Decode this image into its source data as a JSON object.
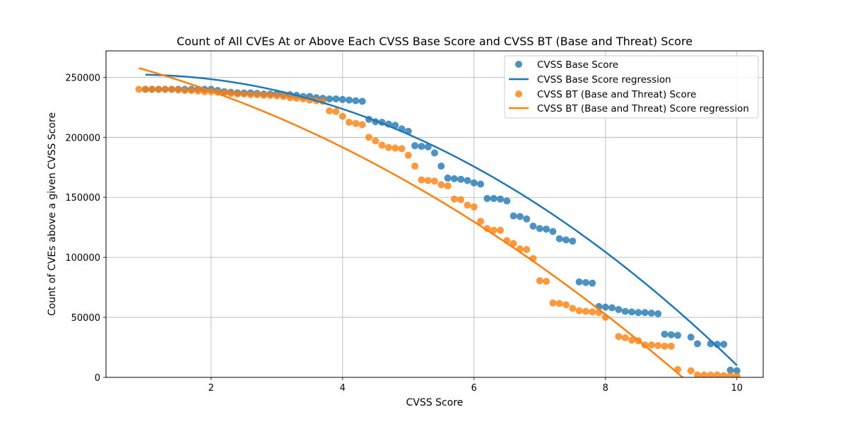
{
  "chart_data": {
    "type": "scatter",
    "title": "Count of All CVEs At or Above Each CVSS Base Score and CVSS BT (Base and Threat) Score",
    "xlabel": "CVSS Score",
    "ylabel": "Count of CVEs above a given CVSS Score",
    "xlim": [
      0.4,
      10.4
    ],
    "ylim": [
      0,
      272000
    ],
    "xticks": [
      2,
      4,
      6,
      8,
      10
    ],
    "yticks": [
      0,
      50000,
      100000,
      150000,
      200000,
      250000
    ],
    "grid": true,
    "legend_position": "top-right",
    "series": [
      {
        "name": "CVSS Base Score",
        "kind": "scatter",
        "color": "#1f77b4",
        "x": [
          1.0,
          1.1,
          1.2,
          1.3,
          1.4,
          1.5,
          1.6,
          1.7,
          1.8,
          1.9,
          2.0,
          2.1,
          2.2,
          2.3,
          2.4,
          2.5,
          2.6,
          2.7,
          2.8,
          2.9,
          3.0,
          3.1,
          3.2,
          3.3,
          3.4,
          3.5,
          3.6,
          3.7,
          3.8,
          3.9,
          4.0,
          4.1,
          4.2,
          4.3,
          4.4,
          4.5,
          4.6,
          4.7,
          4.8,
          4.9,
          5.0,
          5.1,
          5.2,
          5.3,
          5.4,
          5.5,
          5.6,
          5.7,
          5.8,
          5.9,
          6.0,
          6.1,
          6.2,
          6.3,
          6.4,
          6.5,
          6.6,
          6.7,
          6.8,
          6.9,
          7.0,
          7.1,
          7.2,
          7.3,
          7.4,
          7.5,
          7.6,
          7.7,
          7.8,
          7.9,
          8.0,
          8.1,
          8.2,
          8.3,
          8.4,
          8.5,
          8.6,
          8.7,
          8.8,
          8.9,
          9.0,
          9.1,
          9.3,
          9.4,
          9.6,
          9.7,
          9.8,
          9.9,
          10.0
        ],
        "y": [
          240000,
          240000,
          240000,
          240000,
          240000,
          240000,
          240000,
          240000,
          240000,
          240000,
          240000,
          239000,
          238000,
          237500,
          237000,
          237000,
          237000,
          236500,
          236000,
          236000,
          236000,
          235500,
          235500,
          235000,
          234000,
          234000,
          233000,
          232500,
          232000,
          232000,
          231500,
          231000,
          230500,
          230000,
          215000,
          213000,
          212500,
          211000,
          210000,
          207000,
          205000,
          193000,
          192500,
          192000,
          187000,
          176000,
          166000,
          165500,
          165000,
          164000,
          162000,
          161000,
          149000,
          149000,
          148500,
          147000,
          134500,
          134000,
          132000,
          126000,
          124000,
          123500,
          121500,
          115500,
          114500,
          113500,
          79500,
          79000,
          78500,
          59000,
          58500,
          58000,
          56500,
          55000,
          54500,
          54000,
          54000,
          53500,
          53000,
          36000,
          35500,
          35000,
          33500,
          28000,
          28000,
          27500,
          27500,
          6000,
          5500
        ]
      },
      {
        "name": "CVSS Base Score regression",
        "kind": "line",
        "color": "#1f77b4",
        "coefficients": [
          250000,
          5000,
          -2900
        ],
        "x_range": [
          1.0,
          10.0
        ]
      },
      {
        "name": "CVSS BT (Base and Threat) Score",
        "kind": "scatter",
        "color": "#ff7f0e",
        "x": [
          0.9,
          1.0,
          1.1,
          1.2,
          1.3,
          1.4,
          1.5,
          1.6,
          1.7,
          1.8,
          1.9,
          2.0,
          2.1,
          2.2,
          2.3,
          2.4,
          2.5,
          2.6,
          2.7,
          2.8,
          2.9,
          3.0,
          3.1,
          3.2,
          3.3,
          3.4,
          3.5,
          3.6,
          3.7,
          3.8,
          3.9,
          4.0,
          4.1,
          4.2,
          4.3,
          4.4,
          4.5,
          4.6,
          4.7,
          4.8,
          4.9,
          5.0,
          5.1,
          5.2,
          5.3,
          5.4,
          5.5,
          5.6,
          5.7,
          5.8,
          5.9,
          6.0,
          6.1,
          6.2,
          6.3,
          6.4,
          6.5,
          6.6,
          6.7,
          6.8,
          6.9,
          7.0,
          7.1,
          7.2,
          7.3,
          7.4,
          7.5,
          7.6,
          7.7,
          7.8,
          7.9,
          8.0,
          8.2,
          8.3,
          8.4,
          8.5,
          8.6,
          8.7,
          8.8,
          8.9,
          9.0,
          9.1,
          9.3,
          9.4,
          9.5,
          9.6,
          9.7,
          9.8,
          9.9,
          10.0
        ],
        "y": [
          240000,
          240000,
          240000,
          240000,
          240000,
          240000,
          239500,
          239000,
          239000,
          238500,
          238000,
          238000,
          237500,
          237000,
          236500,
          236000,
          236000,
          235500,
          235500,
          235000,
          235000,
          234500,
          234000,
          233000,
          232500,
          232000,
          231000,
          230500,
          230000,
          222000,
          221500,
          217500,
          212500,
          211500,
          210500,
          200000,
          197000,
          193500,
          191500,
          191000,
          190500,
          185000,
          176000,
          164500,
          164000,
          163500,
          160500,
          159500,
          148500,
          148000,
          143500,
          142000,
          130000,
          124000,
          122500,
          122500,
          114000,
          111500,
          107000,
          106500,
          99000,
          80500,
          80000,
          62000,
          61500,
          60500,
          57500,
          55500,
          55000,
          54500,
          54000,
          50000,
          34000,
          33000,
          31000,
          30500,
          27000,
          27000,
          26500,
          26000,
          26000,
          6500,
          5500,
          2000,
          2000,
          2000,
          2000,
          1500,
          1500,
          1000
        ]
      },
      {
        "name": "CVSS BT (Base and Threat) Score regression",
        "kind": "line",
        "color": "#ff7f0e",
        "coefficients": [
          270000,
          -12000,
          -1900
        ],
        "x_range": [
          0.9,
          10.0
        ]
      }
    ]
  }
}
